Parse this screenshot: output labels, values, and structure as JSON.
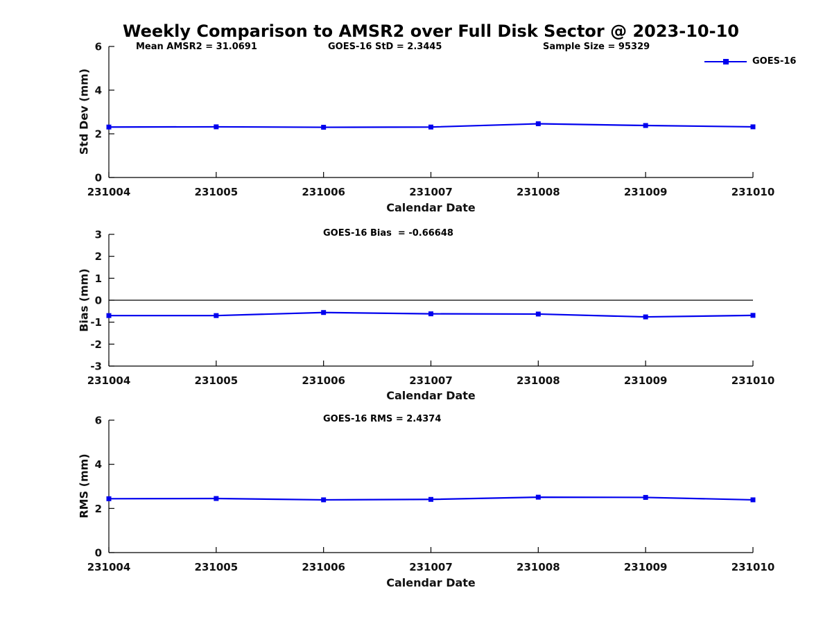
{
  "title": "Weekly Comparison to AMSR2 over Full Disk Sector @ 2023-10-10",
  "legend": {
    "label": "GOES-16"
  },
  "colors": {
    "line": "#0000ee",
    "axis": "#000000"
  },
  "chart_data": [
    {
      "type": "line",
      "name": "std-dev",
      "categories": [
        "231004",
        "231005",
        "231006",
        "231007",
        "231008",
        "231009",
        "231010"
      ],
      "series": [
        {
          "name": "GOES-16",
          "values": [
            2.31,
            2.32,
            2.3,
            2.31,
            2.46,
            2.38,
            2.32
          ]
        }
      ],
      "xlabel": "Calendar Date",
      "ylabel": "Std Dev (mm)",
      "ylim": [
        0,
        6
      ],
      "yticks": [
        0,
        2,
        4,
        6
      ],
      "grid": false,
      "legend_position": "top-right",
      "annotations": [
        "Mean AMSR2 = 31.0691",
        "GOES-16 StD = 2.3445",
        "Sample Size = 95329"
      ]
    },
    {
      "type": "line",
      "name": "bias",
      "categories": [
        "231004",
        "231005",
        "231006",
        "231007",
        "231008",
        "231009",
        "231010"
      ],
      "series": [
        {
          "name": "GOES-16",
          "values": [
            -0.7,
            -0.7,
            -0.56,
            -0.62,
            -0.63,
            -0.76,
            -0.69
          ]
        }
      ],
      "xlabel": "Calendar Date",
      "ylabel": "Bias (mm)",
      "ylim": [
        -3,
        3
      ],
      "yticks": [
        3,
        2,
        1,
        0,
        -1,
        -2,
        -3
      ],
      "zero_line": true,
      "grid": false,
      "annotations": [
        "GOES-16 Bias  = -0.66648"
      ]
    },
    {
      "type": "line",
      "name": "rms",
      "categories": [
        "231004",
        "231005",
        "231006",
        "231007",
        "231008",
        "231009",
        "231010"
      ],
      "series": [
        {
          "name": "GOES-16",
          "values": [
            2.44,
            2.45,
            2.39,
            2.41,
            2.51,
            2.5,
            2.39
          ]
        }
      ],
      "xlabel": "Calendar Date",
      "ylabel": "RMS (mm)",
      "ylim": [
        0,
        6
      ],
      "yticks": [
        0,
        2,
        4,
        6
      ],
      "grid": false,
      "annotations": [
        "GOES-16 RMS = 2.4374"
      ]
    }
  ]
}
